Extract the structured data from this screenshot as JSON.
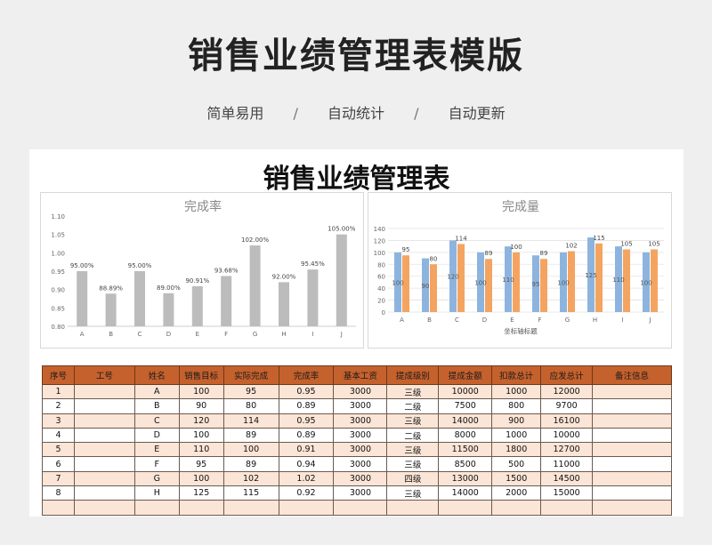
{
  "hero": {
    "title": "销售业绩管理表模版"
  },
  "subtitle": {
    "items": [
      "简单易用",
      "自动统计",
      "自动更新"
    ],
    "separator": "/"
  },
  "sheet": {
    "title": "销售业绩管理表"
  },
  "colors": {
    "gray_bar": "#bcbcbc",
    "blue_bar": "#8db4de",
    "orange_bar": "#f4a460",
    "header_bg": "#c5612d",
    "row_alt": "#fbe5d6"
  },
  "chart_data": [
    {
      "type": "bar",
      "title": "完成率",
      "categories": [
        "A",
        "B",
        "C",
        "D",
        "E",
        "F",
        "G",
        "H",
        "I",
        "J"
      ],
      "values": [
        0.95,
        0.8889,
        0.95,
        0.89,
        0.9091,
        0.9368,
        1.02,
        0.92,
        0.9545,
        1.05
      ],
      "data_labels": [
        "95.00%",
        "88.89%",
        "95.00%",
        "89.00%",
        "90.91%",
        "93.68%",
        "102.00%",
        "92.00%",
        "95.45%",
        "105.00%"
      ],
      "yticks": [
        "0.80",
        "0.85",
        "0.90",
        "0.95",
        "1.00",
        "1.05",
        "1.10"
      ],
      "ylim": [
        0.8,
        1.1
      ],
      "grid": false
    },
    {
      "type": "bar",
      "title": "完成量",
      "xlabel": "坐标轴标题",
      "categories": [
        "A",
        "B",
        "C",
        "D",
        "E",
        "F",
        "G",
        "H",
        "I",
        "J"
      ],
      "series": [
        {
          "values": [
            100,
            90,
            120,
            100,
            110,
            95,
            100,
            125,
            110,
            100
          ]
        },
        {
          "values": [
            95,
            80,
            114,
            89,
            100,
            89,
            102,
            115,
            105,
            105
          ]
        }
      ],
      "yticks": [
        "0",
        "20",
        "40",
        "60",
        "80",
        "100",
        "120",
        "140"
      ],
      "ylim": [
        0,
        140
      ],
      "grid": true
    }
  ],
  "table": {
    "headers": [
      "序号",
      "工号",
      "姓名",
      "销售目标",
      "实际完成",
      "完成率",
      "基本工资",
      "提成级别",
      "提成金额",
      "扣款总计",
      "应发总计",
      "备注信息"
    ],
    "rows": [
      [
        "1",
        "",
        "A",
        "100",
        "95",
        "0.95",
        "3000",
        "三级",
        "10000",
        "1000",
        "12000",
        ""
      ],
      [
        "2",
        "",
        "B",
        "90",
        "80",
        "0.89",
        "3000",
        "二级",
        "7500",
        "800",
        "9700",
        ""
      ],
      [
        "3",
        "",
        "C",
        "120",
        "114",
        "0.95",
        "3000",
        "三级",
        "14000",
        "900",
        "16100",
        ""
      ],
      [
        "4",
        "",
        "D",
        "100",
        "89",
        "0.89",
        "3000",
        "二级",
        "8000",
        "1000",
        "10000",
        ""
      ],
      [
        "5",
        "",
        "E",
        "110",
        "100",
        "0.91",
        "3000",
        "三级",
        "11500",
        "1800",
        "12700",
        ""
      ],
      [
        "6",
        "",
        "F",
        "95",
        "89",
        "0.94",
        "3000",
        "三级",
        "8500",
        "500",
        "11000",
        ""
      ],
      [
        "7",
        "",
        "G",
        "100",
        "102",
        "1.02",
        "3000",
        "四级",
        "13000",
        "1500",
        "14500",
        ""
      ],
      [
        "8",
        "",
        "H",
        "125",
        "115",
        "0.92",
        "3000",
        "三级",
        "14000",
        "2000",
        "15000",
        ""
      ],
      [
        "",
        "",
        "",
        "",
        "",
        "",
        "",
        "",
        "",
        "",
        "",
        ""
      ]
    ]
  }
}
